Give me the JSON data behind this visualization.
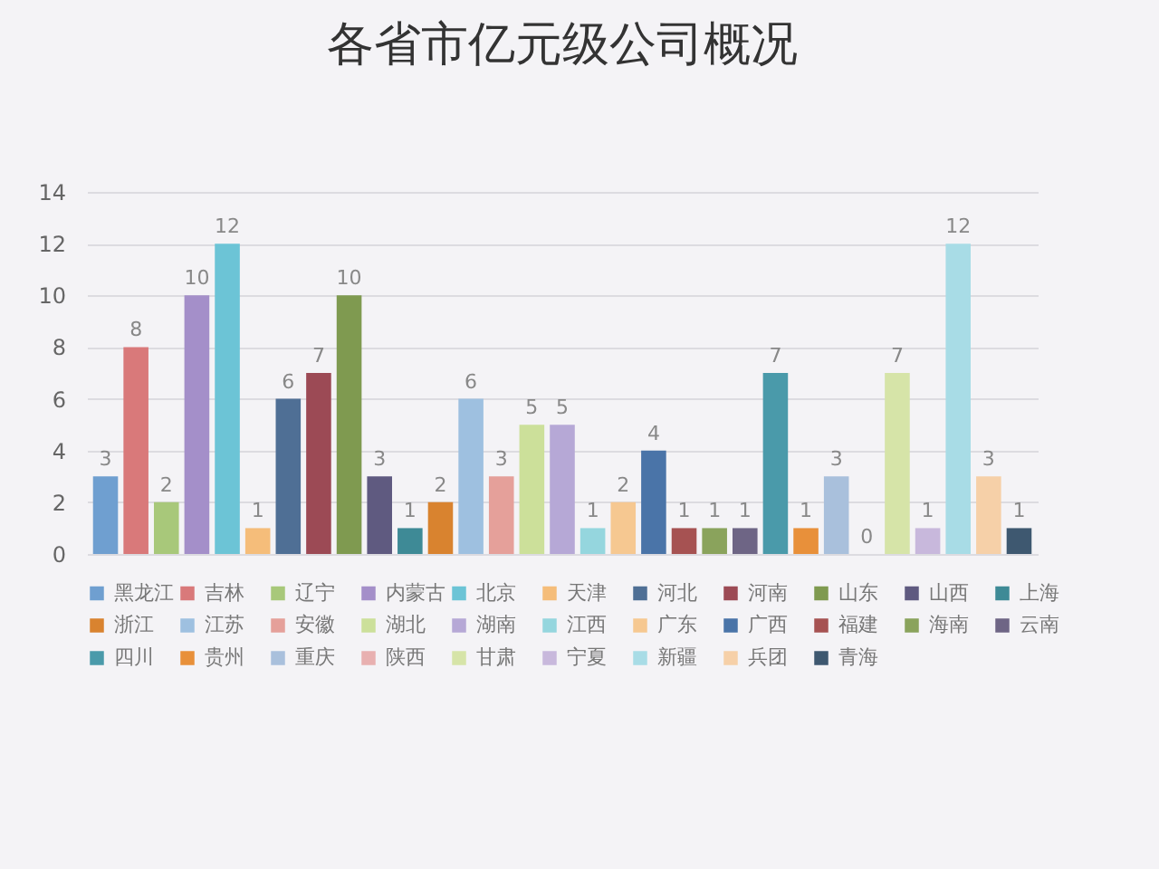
{
  "chart_data": {
    "type": "bar",
    "title": "各省市亿元级公司概况",
    "stacked": true,
    "categories": [
      null,
      null,
      null,
      null,
      null,
      null,
      null,
      null,
      null,
      null,
      null,
      null,
      null,
      null,
      null,
      null,
      null,
      null,
      null,
      null,
      null,
      null,
      null,
      null,
      null,
      null,
      null,
      null,
      null,
      null,
      null
    ],
    "series": [
      {
        "name": "黑龙江",
        "color": "#6f9fd0",
        "values": [
          3,
          null,
          null,
          null,
          null,
          null,
          null,
          null,
          null,
          null,
          null,
          null,
          null,
          null,
          null,
          null,
          null,
          null,
          null,
          null,
          null,
          null,
          null,
          null,
          null,
          null,
          null,
          null,
          null,
          null,
          null
        ]
      },
      {
        "name": "吉林",
        "color": "#d9797a",
        "values": [
          null,
          8,
          null,
          null,
          null,
          null,
          null,
          null,
          null,
          null,
          null,
          null,
          null,
          null,
          null,
          null,
          null,
          null,
          null,
          null,
          null,
          null,
          null,
          null,
          null,
          null,
          null,
          null,
          null,
          null,
          null
        ]
      },
      {
        "name": "辽宁",
        "color": "#a8c87a",
        "values": [
          null,
          null,
          2,
          null,
          null,
          null,
          null,
          null,
          null,
          null,
          null,
          null,
          null,
          null,
          null,
          null,
          null,
          null,
          null,
          null,
          null,
          null,
          null,
          null,
          null,
          null,
          null,
          null,
          null,
          null,
          null
        ]
      },
      {
        "name": "内蒙古",
        "color": "#a48fc9",
        "values": [
          null,
          null,
          null,
          10,
          null,
          null,
          null,
          null,
          null,
          null,
          null,
          null,
          null,
          null,
          null,
          null,
          null,
          null,
          null,
          null,
          null,
          null,
          null,
          null,
          null,
          null,
          null,
          null,
          null,
          null,
          null
        ]
      },
      {
        "name": "北京",
        "color": "#6cc4d6",
        "values": [
          null,
          null,
          null,
          null,
          12,
          null,
          null,
          null,
          null,
          null,
          null,
          null,
          null,
          null,
          null,
          null,
          null,
          null,
          null,
          null,
          null,
          null,
          null,
          null,
          null,
          null,
          null,
          null,
          null,
          null,
          null
        ]
      },
      {
        "name": "天津",
        "color": "#f5bd7a",
        "values": [
          null,
          null,
          null,
          null,
          null,
          1,
          null,
          null,
          null,
          null,
          null,
          null,
          null,
          null,
          null,
          null,
          null,
          null,
          null,
          null,
          null,
          null,
          null,
          null,
          null,
          null,
          null,
          null,
          null,
          null,
          null
        ]
      },
      {
        "name": "河北",
        "color": "#4f6f95",
        "values": [
          null,
          null,
          null,
          null,
          null,
          null,
          6,
          null,
          null,
          null,
          null,
          null,
          null,
          null,
          null,
          null,
          null,
          null,
          null,
          null,
          null,
          null,
          null,
          null,
          null,
          null,
          null,
          null,
          null,
          null,
          null
        ]
      },
      {
        "name": "河南",
        "color": "#9c4a55",
        "values": [
          null,
          null,
          null,
          null,
          null,
          null,
          null,
          7,
          null,
          null,
          null,
          null,
          null,
          null,
          null,
          null,
          null,
          null,
          null,
          null,
          null,
          null,
          null,
          null,
          null,
          null,
          null,
          null,
          null,
          null,
          null
        ]
      },
      {
        "name": "山东",
        "color": "#7f9a50",
        "values": [
          null,
          null,
          null,
          null,
          null,
          null,
          null,
          null,
          10,
          null,
          null,
          null,
          null,
          null,
          null,
          null,
          null,
          null,
          null,
          null,
          null,
          null,
          null,
          null,
          null,
          null,
          null,
          null,
          null,
          null,
          null
        ]
      },
      {
        "name": "山西",
        "color": "#5f5a80",
        "values": [
          null,
          null,
          null,
          null,
          null,
          null,
          null,
          null,
          null,
          3,
          null,
          null,
          null,
          null,
          null,
          null,
          null,
          null,
          null,
          null,
          null,
          null,
          null,
          null,
          null,
          null,
          null,
          null,
          null,
          null,
          null
        ]
      },
      {
        "name": "上海",
        "color": "#3e8a96",
        "values": [
          null,
          null,
          null,
          null,
          null,
          null,
          null,
          null,
          null,
          null,
          1,
          null,
          null,
          null,
          null,
          null,
          null,
          null,
          null,
          null,
          null,
          null,
          null,
          null,
          null,
          null,
          null,
          null,
          null,
          null,
          null
        ]
      },
      {
        "name": "浙江",
        "color": "#d9832f",
        "values": [
          null,
          null,
          null,
          null,
          null,
          null,
          null,
          null,
          null,
          null,
          null,
          2,
          null,
          null,
          null,
          null,
          null,
          null,
          null,
          null,
          null,
          null,
          null,
          null,
          null,
          null,
          null,
          null,
          null,
          null,
          null
        ]
      },
      {
        "name": "江苏",
        "color": "#9ec0e0",
        "values": [
          null,
          null,
          null,
          null,
          null,
          null,
          null,
          null,
          null,
          null,
          null,
          null,
          6,
          null,
          null,
          null,
          null,
          null,
          null,
          null,
          null,
          null,
          null,
          null,
          null,
          null,
          null,
          null,
          null,
          null,
          null
        ]
      },
      {
        "name": "安徽",
        "color": "#e5a09a",
        "values": [
          null,
          null,
          null,
          null,
          null,
          null,
          null,
          null,
          null,
          null,
          null,
          null,
          null,
          3,
          null,
          null,
          null,
          null,
          null,
          null,
          null,
          null,
          null,
          null,
          null,
          null,
          null,
          null,
          null,
          null,
          null
        ]
      },
      {
        "name": "湖北",
        "color": "#cce09a",
        "values": [
          null,
          null,
          null,
          null,
          null,
          null,
          null,
          null,
          null,
          null,
          null,
          null,
          null,
          null,
          5,
          null,
          null,
          null,
          null,
          null,
          null,
          null,
          null,
          null,
          null,
          null,
          null,
          null,
          null,
          null,
          null
        ]
      },
      {
        "name": "湖南",
        "color": "#b6a8d6",
        "values": [
          null,
          null,
          null,
          null,
          null,
          null,
          null,
          null,
          null,
          null,
          null,
          null,
          null,
          null,
          null,
          5,
          null,
          null,
          null,
          null,
          null,
          null,
          null,
          null,
          null,
          null,
          null,
          null,
          null,
          null,
          null
        ]
      },
      {
        "name": "江西",
        "color": "#95d6de",
        "values": [
          null,
          null,
          null,
          null,
          null,
          null,
          null,
          null,
          null,
          null,
          null,
          null,
          null,
          null,
          null,
          null,
          1,
          null,
          null,
          null,
          null,
          null,
          null,
          null,
          null,
          null,
          null,
          null,
          null,
          null,
          null
        ]
      },
      {
        "name": "广东",
        "color": "#f6c891",
        "values": [
          null,
          null,
          null,
          null,
          null,
          null,
          null,
          null,
          null,
          null,
          null,
          null,
          null,
          null,
          null,
          null,
          null,
          2,
          null,
          null,
          null,
          null,
          null,
          null,
          null,
          null,
          null,
          null,
          null,
          null,
          null
        ]
      },
      {
        "name": "广西",
        "color": "#4a74a8",
        "values": [
          null,
          null,
          null,
          null,
          null,
          null,
          null,
          null,
          null,
          null,
          null,
          null,
          null,
          null,
          null,
          null,
          null,
          null,
          4,
          null,
          null,
          null,
          null,
          null,
          null,
          null,
          null,
          null,
          null,
          null,
          null
        ]
      },
      {
        "name": "福建",
        "color": "#a65252",
        "values": [
          null,
          null,
          null,
          null,
          null,
          null,
          null,
          null,
          null,
          null,
          null,
          null,
          null,
          null,
          null,
          null,
          null,
          null,
          null,
          1,
          null,
          null,
          null,
          null,
          null,
          null,
          null,
          null,
          null,
          null,
          null
        ]
      },
      {
        "name": "海南",
        "color": "#8aa35c",
        "values": [
          null,
          null,
          null,
          null,
          null,
          null,
          null,
          null,
          null,
          null,
          null,
          null,
          null,
          null,
          null,
          null,
          null,
          null,
          null,
          null,
          1,
          null,
          null,
          null,
          null,
          null,
          null,
          null,
          null,
          null,
          null
        ]
      },
      {
        "name": "云南",
        "color": "#6e6585",
        "values": [
          null,
          null,
          null,
          null,
          null,
          null,
          null,
          null,
          null,
          null,
          null,
          null,
          null,
          null,
          null,
          null,
          null,
          null,
          null,
          null,
          null,
          1,
          null,
          null,
          null,
          null,
          null,
          null,
          null,
          null,
          null
        ]
      },
      {
        "name": "四川",
        "color": "#4a9aaa",
        "values": [
          null,
          null,
          null,
          null,
          null,
          null,
          null,
          null,
          null,
          null,
          null,
          null,
          null,
          null,
          null,
          null,
          null,
          null,
          null,
          null,
          null,
          null,
          7,
          null,
          null,
          null,
          null,
          null,
          null,
          null,
          null
        ]
      },
      {
        "name": "贵州",
        "color": "#e8903a",
        "values": [
          null,
          null,
          null,
          null,
          null,
          null,
          null,
          null,
          null,
          null,
          null,
          null,
          null,
          null,
          null,
          null,
          null,
          null,
          null,
          null,
          null,
          null,
          null,
          1,
          null,
          null,
          null,
          null,
          null,
          null,
          null
        ]
      },
      {
        "name": "重庆",
        "color": "#a9c0dc",
        "values": [
          null,
          null,
          null,
          null,
          null,
          null,
          null,
          null,
          null,
          null,
          null,
          null,
          null,
          null,
          null,
          null,
          null,
          null,
          null,
          null,
          null,
          null,
          null,
          null,
          3,
          null,
          null,
          null,
          null,
          null,
          null
        ]
      },
      {
        "name": "陕西",
        "color": "#e8b0b0",
        "values": [
          null,
          null,
          null,
          null,
          null,
          null,
          null,
          null,
          null,
          null,
          null,
          null,
          null,
          null,
          null,
          null,
          null,
          null,
          null,
          null,
          null,
          null,
          null,
          null,
          null,
          0,
          null,
          null,
          null,
          null,
          null
        ]
      },
      {
        "name": "甘肃",
        "color": "#d6e4a8",
        "values": [
          null,
          null,
          null,
          null,
          null,
          null,
          null,
          null,
          null,
          null,
          null,
          null,
          null,
          null,
          null,
          null,
          null,
          null,
          null,
          null,
          null,
          null,
          null,
          null,
          null,
          null,
          7,
          null,
          null,
          null,
          null
        ]
      },
      {
        "name": "宁夏",
        "color": "#c8b8dc",
        "values": [
          null,
          null,
          null,
          null,
          null,
          null,
          null,
          null,
          null,
          null,
          null,
          null,
          null,
          null,
          null,
          null,
          null,
          null,
          null,
          null,
          null,
          null,
          null,
          null,
          null,
          null,
          null,
          1,
          null,
          null,
          null
        ]
      },
      {
        "name": "新疆",
        "color": "#a8dce6",
        "values": [
          null,
          null,
          null,
          null,
          null,
          null,
          null,
          null,
          null,
          null,
          null,
          null,
          null,
          null,
          null,
          null,
          null,
          null,
          null,
          null,
          null,
          null,
          null,
          null,
          null,
          null,
          null,
          null,
          12,
          null,
          null
        ]
      },
      {
        "name": "兵团",
        "color": "#f6d0a8",
        "values": [
          null,
          null,
          null,
          null,
          null,
          null,
          null,
          null,
          null,
          null,
          null,
          null,
          null,
          null,
          null,
          null,
          null,
          null,
          null,
          null,
          null,
          null,
          null,
          null,
          null,
          null,
          null,
          null,
          null,
          3,
          null
        ]
      },
      {
        "name": "青海",
        "color": "#3e5870",
        "values": [
          null,
          null,
          null,
          null,
          null,
          null,
          null,
          null,
          null,
          null,
          null,
          null,
          null,
          null,
          null,
          null,
          null,
          null,
          null,
          null,
          null,
          null,
          null,
          null,
          null,
          null,
          null,
          null,
          null,
          null,
          1
        ]
      }
    ],
    "ylim": [
      0,
      14
    ],
    "yticks": [
      0,
      2,
      4,
      6,
      8,
      10,
      12,
      14
    ],
    "grid": "y",
    "data_labels": true,
    "legend": "bottom",
    "tick_labels": "y"
  }
}
